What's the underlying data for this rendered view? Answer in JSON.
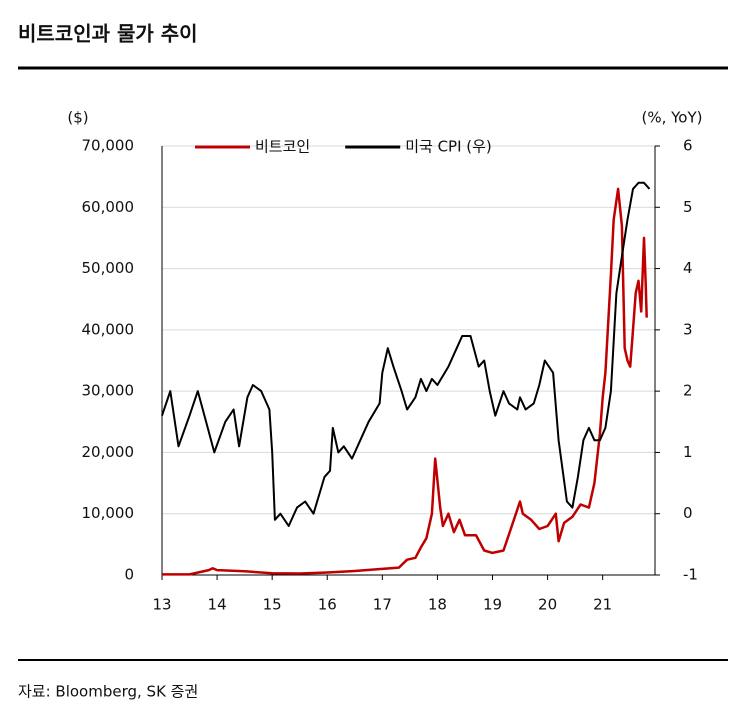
{
  "chart_data": {
    "type": "line",
    "title": "비트코인과 물가 추이",
    "y_label": "($)",
    "y2_label": "(%, YoY)",
    "source": "자료: Bloomberg, SK 증권",
    "grid": true,
    "legend": "top",
    "xlim": [
      2013,
      2021.95
    ],
    "xticks": [
      {
        "value": 2013,
        "label": "13"
      },
      {
        "value": 2014,
        "label": "14"
      },
      {
        "value": 2015,
        "label": "15"
      },
      {
        "value": 2016,
        "label": "16"
      },
      {
        "value": 2017,
        "label": "17"
      },
      {
        "value": 2018,
        "label": "18"
      },
      {
        "value": 2019,
        "label": "19"
      },
      {
        "value": 2020,
        "label": "20"
      },
      {
        "value": 2021,
        "label": "21"
      }
    ],
    "ylim": [
      0,
      70000
    ],
    "yticks": [
      0,
      {
        "value": 10000,
        "label": "10,000"
      },
      {
        "value": 20000,
        "label": "20,000"
      },
      {
        "value": 30000,
        "label": "30,000"
      },
      {
        "value": 40000,
        "label": "40,000"
      },
      {
        "value": 50000,
        "label": "50,000"
      },
      {
        "value": 60000,
        "label": "60,000"
      },
      {
        "value": 70000,
        "label": "70,000"
      }
    ],
    "y2lim": [
      -1,
      6
    ],
    "y2ticks": [
      -1,
      0,
      1,
      2,
      3,
      4,
      5,
      6
    ],
    "series": [
      {
        "name": "비트코인",
        "color": "#c00000",
        "axis": "y",
        "x": [
          2013,
          2013.5,
          2013.85,
          2013.92,
          2014.0,
          2014.5,
          2015,
          2015.5,
          2016,
          2016.5,
          2017,
          2017.3,
          2017.45,
          2017.6,
          2017.7,
          2017.8,
          2017.9,
          2017.96,
          2018.05,
          2018.1,
          2018.2,
          2018.3,
          2018.4,
          2018.5,
          2018.7,
          2018.85,
          2019.0,
          2019.2,
          2019.35,
          2019.5,
          2019.55,
          2019.7,
          2019.85,
          2020.0,
          2020.15,
          2020.2,
          2020.3,
          2020.45,
          2020.6,
          2020.75,
          2020.85,
          2020.95,
          2021.0,
          2021.05,
          2021.15,
          2021.2,
          2021.28,
          2021.35,
          2021.4,
          2021.45,
          2021.5,
          2021.55,
          2021.6,
          2021.65,
          2021.7,
          2021.75,
          2021.78,
          2021.8
        ],
        "values": [
          100,
          100,
          800,
          1100,
          800,
          600,
          300,
          250,
          400,
          650,
          1000,
          1200,
          2500,
          2800,
          4500,
          6000,
          10000,
          19000,
          11000,
          8000,
          10000,
          7000,
          9000,
          6500,
          6500,
          4000,
          3600,
          4000,
          8000,
          12000,
          10000,
          9000,
          7500,
          8000,
          10000,
          5500,
          8500,
          9500,
          11500,
          11000,
          15000,
          23000,
          29000,
          33000,
          49000,
          58000,
          63000,
          57000,
          37000,
          35000,
          34000,
          40000,
          46000,
          48000,
          43000,
          55000,
          48000,
          42000
        ]
      },
      {
        "name": "미국 CPI (우)",
        "color": "#000000",
        "axis": "y2",
        "x": [
          2013,
          2013.15,
          2013.3,
          2013.5,
          2013.65,
          2013.8,
          2013.95,
          2014.15,
          2014.3,
          2014.4,
          2014.55,
          2014.65,
          2014.8,
          2014.95,
          2015.0,
          2015.05,
          2015.15,
          2015.3,
          2015.45,
          2015.6,
          2015.75,
          2015.95,
          2016.05,
          2016.1,
          2016.2,
          2016.3,
          2016.45,
          2016.6,
          2016.75,
          2016.95,
          2017.0,
          2017.1,
          2017.2,
          2017.35,
          2017.45,
          2017.6,
          2017.7,
          2017.8,
          2017.9,
          2018.0,
          2018.2,
          2018.35,
          2018.45,
          2018.6,
          2018.75,
          2018.85,
          2018.95,
          2019.05,
          2019.2,
          2019.3,
          2019.45,
          2019.5,
          2019.6,
          2019.75,
          2019.85,
          2019.95,
          2020.1,
          2020.2,
          2020.35,
          2020.45,
          2020.55,
          2020.65,
          2020.75,
          2020.85,
          2020.95,
          2021.05,
          2021.15,
          2021.25,
          2021.35,
          2021.45,
          2021.55,
          2021.65,
          2021.75,
          2021.85
        ],
        "values": [
          1.6,
          2.0,
          1.1,
          1.6,
          2.0,
          1.5,
          1.0,
          1.5,
          1.7,
          1.1,
          1.9,
          2.1,
          2.0,
          1.7,
          1.0,
          -0.1,
          0.0,
          -0.2,
          0.1,
          0.2,
          0.0,
          0.6,
          0.7,
          1.4,
          1.0,
          1.1,
          0.9,
          1.2,
          1.5,
          1.8,
          2.3,
          2.7,
          2.4,
          2.0,
          1.7,
          1.9,
          2.2,
          2.0,
          2.2,
          2.1,
          2.4,
          2.7,
          2.9,
          2.9,
          2.4,
          2.5,
          2.0,
          1.6,
          2.0,
          1.8,
          1.7,
          1.9,
          1.7,
          1.8,
          2.1,
          2.5,
          2.3,
          1.2,
          0.2,
          0.1,
          0.6,
          1.2,
          1.4,
          1.2,
          1.2,
          1.4,
          2.0,
          3.6,
          4.2,
          4.8,
          5.3,
          5.4,
          5.4,
          5.3
        ]
      }
    ]
  }
}
